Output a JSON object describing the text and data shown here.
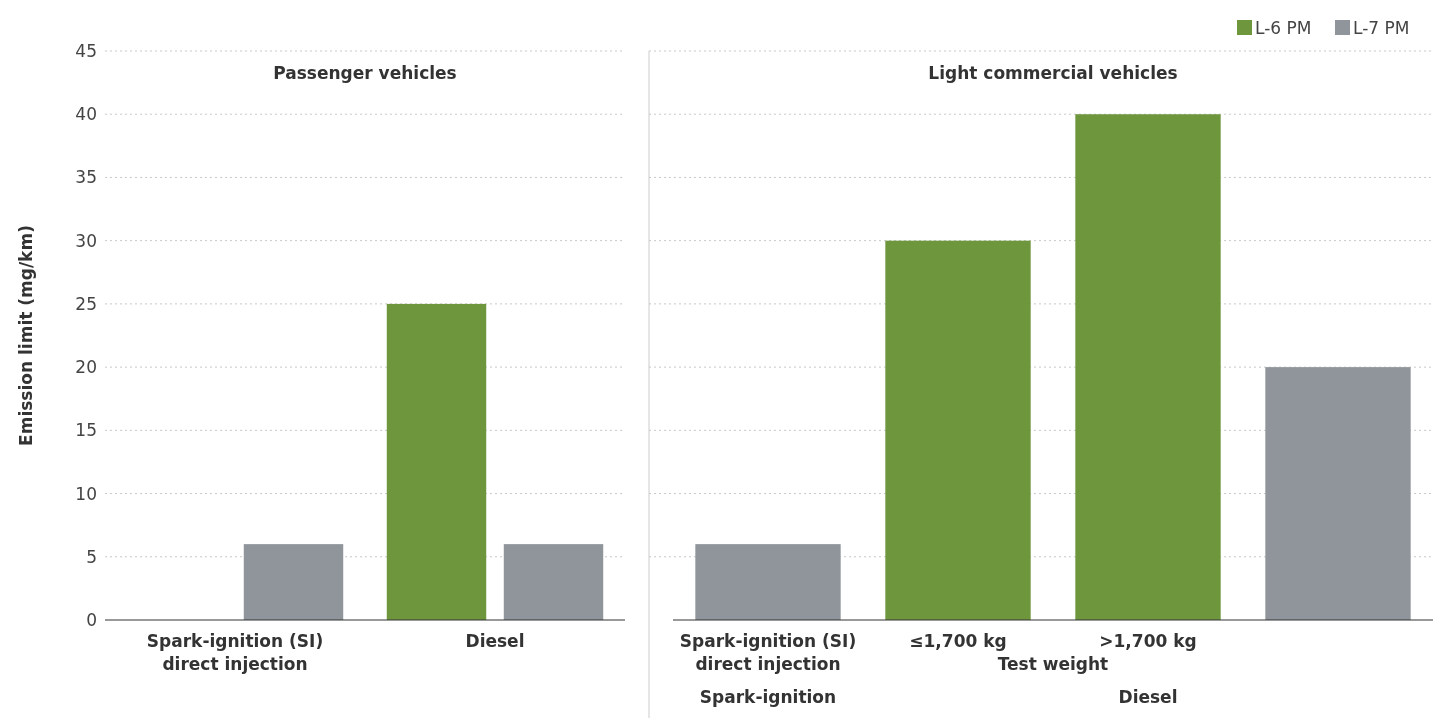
{
  "chart_data": [
    {
      "type": "bar",
      "title": "Passenger vehicles",
      "ylabel": "Emission limit (mg/km)",
      "categories": [
        "Spark-ignition (SI) direct injection",
        "Diesel"
      ],
      "series": [
        {
          "color": "#6e963c",
          "values": [
            null,
            25
          ]
        },
        {
          "color": "#8f959b",
          "values": [
            6,
            6
          ]
        }
      ],
      "ylim": [
        0,
        45
      ],
      "yticks": [
        0,
        5,
        10,
        15,
        20,
        25,
        30,
        35,
        40,
        45
      ],
      "grid": "y",
      "legend": false
    },
    {
      "type": "bar",
      "title": "Light commercial vehicles",
      "categories": [
        "Spark-ignition (SI) direct injection",
        "≤1,700 kg",
        ">1,700 kg",
        null
      ],
      "stacked": true,
      "series": [
        {
          "name": "L-6 PM",
          "color": "#6e963c",
          "values": [
            null,
            30,
            40,
            null
          ]
        },
        {
          "name": "L-7 PM",
          "color": "#8f959b",
          "values": [
            6,
            null,
            null,
            20
          ]
        }
      ],
      "ylim": [
        0,
        45
      ],
      "yticks": [
        0,
        5,
        10,
        15,
        20,
        25,
        30,
        35,
        40,
        45
      ],
      "grid": "y",
      "legend": "top right",
      "tick_labels": "x",
      "annotations": [
        "Spark-ignition",
        "Test weight",
        "Diesel"
      ]
    }
  ]
}
